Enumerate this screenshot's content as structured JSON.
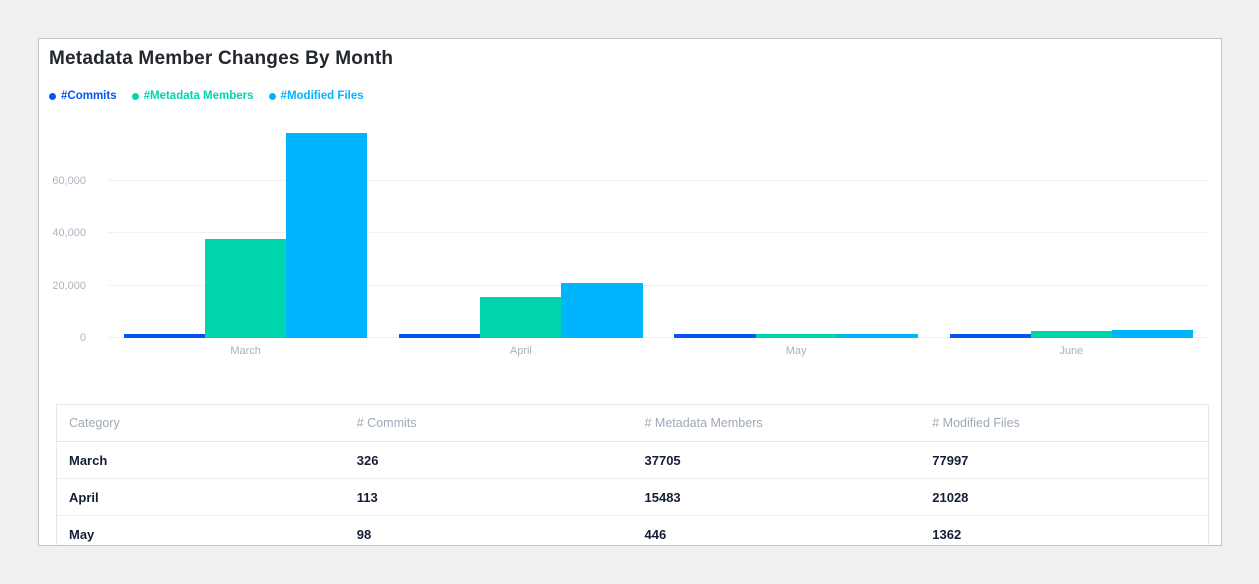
{
  "page": {
    "background": "#f0f0f0",
    "card_background": "#ffffff",
    "card_border": "#c4c4c4"
  },
  "header": {
    "title": "Metadata Member Changes By Month"
  },
  "legend": [
    {
      "label": "#Commits",
      "color": "#0356f3"
    },
    {
      "label": "#Metadata Members",
      "color": "#00d6ab"
    },
    {
      "label": "#Modified Files",
      "color": "#00b5fe"
    }
  ],
  "chart_data": {
    "type": "bar",
    "title": "Metadata Member Changes By Month",
    "categories": [
      "March",
      "April",
      "May",
      "June"
    ],
    "series": [
      {
        "name": "#Commits",
        "color": "#0356f3",
        "values": [
          326,
          113,
          98,
          100
        ]
      },
      {
        "name": "#Metadata Members",
        "color": "#00d6ab",
        "values": [
          37705,
          15483,
          446,
          2800
        ]
      },
      {
        "name": "#Modified Files",
        "color": "#00b5fe",
        "values": [
          77997,
          21028,
          1362,
          3200
        ]
      }
    ],
    "xlabel": "",
    "ylabel": "",
    "y_ticks": [
      0,
      20000,
      40000,
      60000
    ],
    "y_tick_labels": [
      "0",
      "20,000",
      "40,000",
      "60,000"
    ],
    "ylim": [
      0,
      83000
    ],
    "grid": true,
    "legend_position": "top-left"
  },
  "table": {
    "columns": [
      "Category",
      "# Commits",
      "# Metadata Members",
      "# Modified Files"
    ],
    "rows": [
      [
        "March",
        "326",
        "37705",
        "77997"
      ],
      [
        "April",
        "113",
        "15483",
        "21028"
      ],
      [
        "May",
        "98",
        "446",
        "1362"
      ]
    ]
  }
}
